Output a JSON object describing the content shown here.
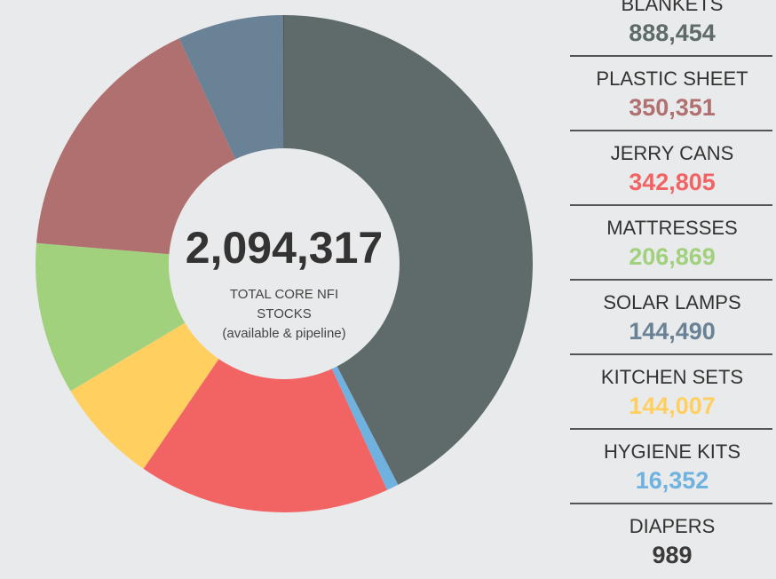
{
  "chart_data": {
    "type": "pie",
    "donut": true,
    "center_label": "2,094,317",
    "center_text": [
      "TOTAL CORE NFI",
      "STOCKS",
      "(available & pipeline)"
    ],
    "categories": [
      "BLANKETS",
      "PLASTIC SHEET",
      "JERRY CANS",
      "MATTRESSES",
      "SOLAR LAMPS",
      "KITCHEN SETS",
      "HYGIENE KITS",
      "DIAPERS"
    ],
    "values": [
      888454,
      350351,
      342805,
      206869,
      144490,
      144007,
      16352,
      989
    ],
    "value_labels": [
      "888,454",
      "350,351",
      "342,805",
      "206,869",
      "144,490",
      "144,007",
      "16,352",
      "989"
    ],
    "colors": [
      "#5f6b6b",
      "#b07070",
      "#f26464",
      "#a2d17e",
      "#6a8296",
      "#ffcf60",
      "#6fb2e0",
      "#3a3a3a"
    ]
  }
}
